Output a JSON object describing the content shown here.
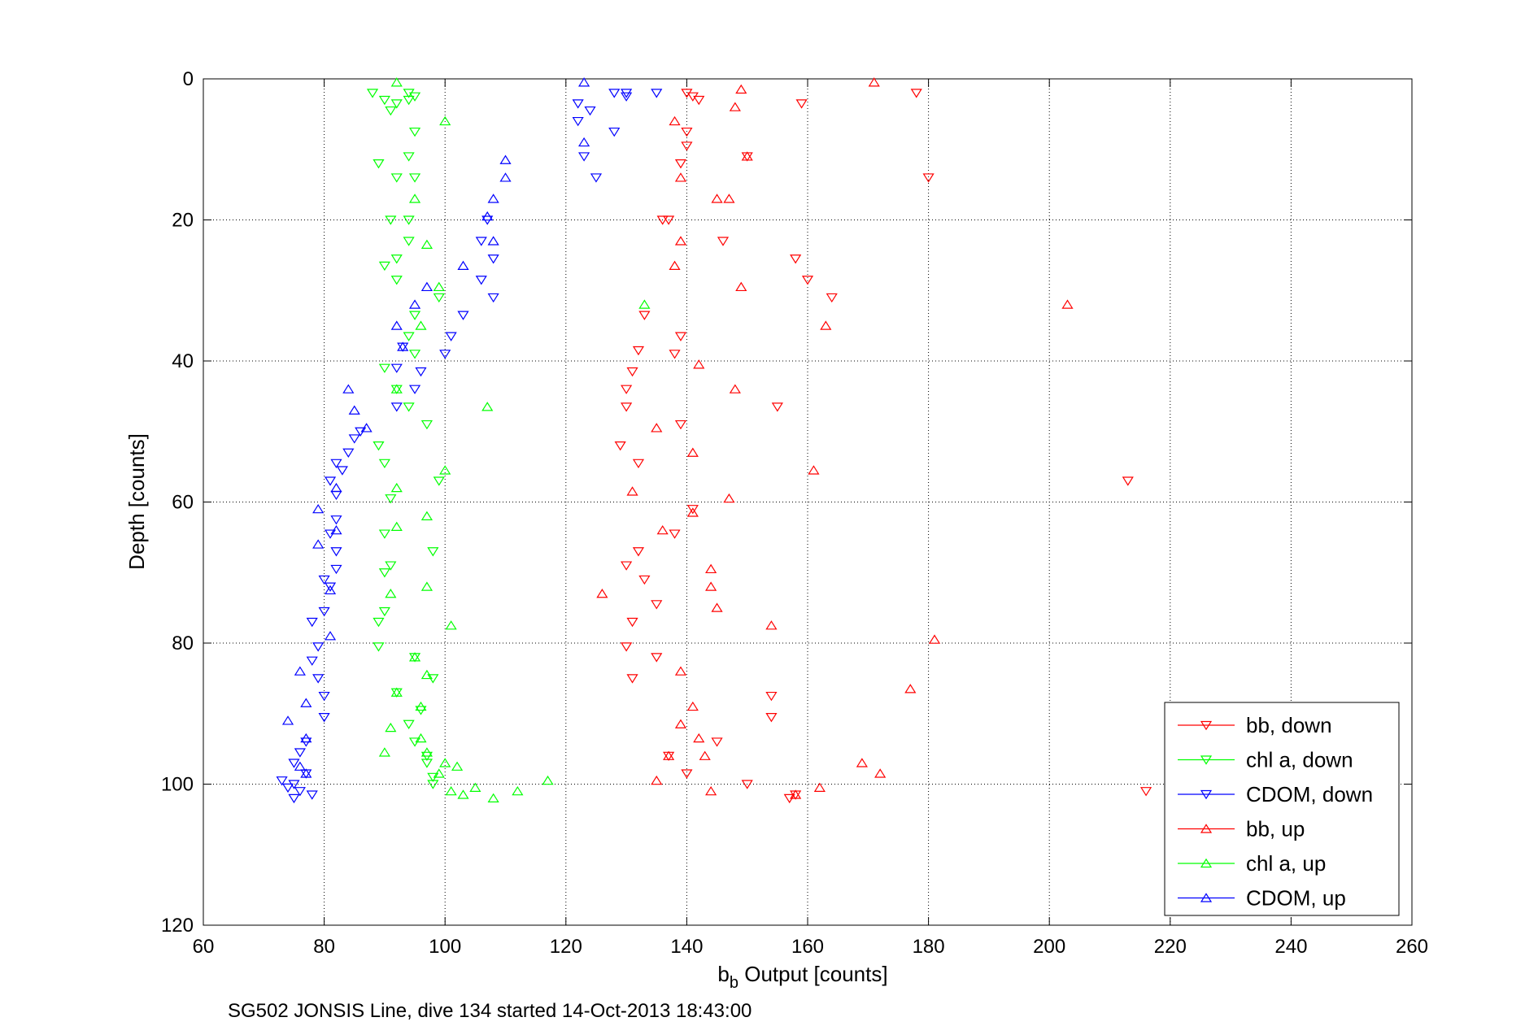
{
  "chart_data": {
    "type": "scatter",
    "title": "",
    "xlabel_main": "b",
    "xlabel_sub": "b",
    "xlabel_rest": " Output [counts]",
    "ylabel": "Depth [counts]",
    "caption": "SG502 JONSIS Line, dive 134 started 14-Oct-2013 18:43:00",
    "xlim": [
      60,
      260
    ],
    "ylim": [
      0,
      120
    ],
    "y_reversed": true,
    "xticks": [
      60,
      80,
      100,
      120,
      140,
      160,
      180,
      200,
      220,
      240,
      260
    ],
    "yticks": [
      0,
      20,
      40,
      60,
      80,
      100,
      120
    ],
    "grid": true,
    "legend_position": "bottom-right",
    "series": [
      {
        "name": "bb, down",
        "color": "#ff0000",
        "marker": "down",
        "points": [
          [
            140,
            2
          ],
          [
            178,
            2
          ],
          [
            141,
            2.5
          ],
          [
            142,
            3
          ],
          [
            159,
            3.5
          ],
          [
            140,
            7.5
          ],
          [
            140,
            9.5
          ],
          [
            150,
            11
          ],
          [
            139,
            12
          ],
          [
            180,
            14
          ],
          [
            137,
            20
          ],
          [
            136,
            20
          ],
          [
            146,
            23
          ],
          [
            158,
            25.5
          ],
          [
            160,
            28.5
          ],
          [
            164,
            31
          ],
          [
            133,
            33.5
          ],
          [
            139,
            36.5
          ],
          [
            132,
            38.5
          ],
          [
            138,
            39
          ],
          [
            131,
            41.5
          ],
          [
            130,
            44
          ],
          [
            155,
            46.5
          ],
          [
            130,
            46.5
          ],
          [
            139,
            49
          ],
          [
            129,
            52
          ],
          [
            132,
            54.5
          ],
          [
            213,
            57
          ],
          [
            141,
            61
          ],
          [
            138,
            64.5
          ],
          [
            132,
            67
          ],
          [
            130,
            69
          ],
          [
            133,
            71
          ],
          [
            135,
            74.5
          ],
          [
            131,
            77
          ],
          [
            130,
            80.5
          ],
          [
            135,
            82
          ],
          [
            131,
            85
          ],
          [
            154,
            87.5
          ],
          [
            154,
            90.5
          ],
          [
            145,
            94
          ],
          [
            137,
            96
          ],
          [
            140,
            98.5
          ],
          [
            150,
            100
          ],
          [
            158,
            101.5
          ],
          [
            157,
            102
          ],
          [
            216,
            101
          ]
        ]
      },
      {
        "name": "chl a, down",
        "color": "#00ff00",
        "marker": "down",
        "points": [
          [
            88,
            2
          ],
          [
            94,
            2
          ],
          [
            95,
            2.5
          ],
          [
            94,
            3
          ],
          [
            90,
            3
          ],
          [
            92,
            3.5
          ],
          [
            91,
            4.5
          ],
          [
            95,
            7.5
          ],
          [
            94,
            11
          ],
          [
            89,
            12
          ],
          [
            92,
            14
          ],
          [
            95,
            14
          ],
          [
            91,
            20
          ],
          [
            94,
            20
          ],
          [
            94,
            23
          ],
          [
            92,
            25.5
          ],
          [
            90,
            26.5
          ],
          [
            92,
            28.5
          ],
          [
            99,
            31
          ],
          [
            95,
            33.5
          ],
          [
            94,
            36.5
          ],
          [
            95,
            39
          ],
          [
            90,
            41
          ],
          [
            92,
            44
          ],
          [
            94,
            46.5
          ],
          [
            97,
            49
          ],
          [
            89,
            52
          ],
          [
            90,
            54.5
          ],
          [
            99,
            57
          ],
          [
            91,
            59.5
          ],
          [
            90,
            64.5
          ],
          [
            98,
            67
          ],
          [
            91,
            69
          ],
          [
            90,
            70
          ],
          [
            90,
            75.5
          ],
          [
            89,
            77
          ],
          [
            89,
            80.5
          ],
          [
            95,
            82
          ],
          [
            98,
            85
          ],
          [
            92,
            87
          ],
          [
            94,
            91.5
          ],
          [
            96,
            89.5
          ],
          [
            95,
            94
          ],
          [
            97,
            96
          ],
          [
            98,
            99
          ],
          [
            98,
            100
          ],
          [
            97,
            97
          ]
        ]
      },
      {
        "name": "CDOM, down",
        "color": "#0000ff",
        "marker": "down",
        "points": [
          [
            128,
            2
          ],
          [
            130,
            2
          ],
          [
            130,
            2.5
          ],
          [
            135,
            2
          ],
          [
            122,
            3.5
          ],
          [
            124,
            4.5
          ],
          [
            122,
            6
          ],
          [
            128,
            7.5
          ],
          [
            123,
            11
          ],
          [
            125,
            14
          ],
          [
            107,
            20
          ],
          [
            106,
            23
          ],
          [
            108,
            25.5
          ],
          [
            106,
            28.5
          ],
          [
            108,
            31
          ],
          [
            103,
            33.5
          ],
          [
            101,
            36.5
          ],
          [
            100,
            39
          ],
          [
            93,
            38
          ],
          [
            96,
            41.5
          ],
          [
            92,
            41
          ],
          [
            95,
            44
          ],
          [
            92,
            46.5
          ],
          [
            86,
            50
          ],
          [
            85,
            51
          ],
          [
            84,
            53
          ],
          [
            82,
            54.5
          ],
          [
            83,
            55.5
          ],
          [
            81,
            57
          ],
          [
            82,
            59
          ],
          [
            82,
            62.5
          ],
          [
            81,
            64.5
          ],
          [
            82,
            67
          ],
          [
            82,
            69.5
          ],
          [
            80,
            71
          ],
          [
            81,
            72
          ],
          [
            80,
            75.5
          ],
          [
            78,
            77
          ],
          [
            79,
            80.5
          ],
          [
            78,
            82.5
          ],
          [
            79,
            85
          ],
          [
            80,
            87.5
          ],
          [
            80,
            90.5
          ],
          [
            77,
            94
          ],
          [
            76,
            95.5
          ],
          [
            75,
            97
          ],
          [
            77,
            98.5
          ],
          [
            73,
            99.5
          ],
          [
            75,
            100
          ],
          [
            74,
            100.5
          ],
          [
            76,
            101
          ],
          [
            78,
            101.5
          ],
          [
            75,
            102
          ]
        ]
      },
      {
        "name": "bb, up",
        "color": "#ff0000",
        "marker": "up",
        "points": [
          [
            171,
            0.5
          ],
          [
            149,
            1.5
          ],
          [
            148,
            4
          ],
          [
            138,
            6
          ],
          [
            150,
            11
          ],
          [
            139,
            14
          ],
          [
            145,
            17
          ],
          [
            147,
            17
          ],
          [
            139,
            23
          ],
          [
            138,
            26.5
          ],
          [
            149,
            29.5
          ],
          [
            203,
            32
          ],
          [
            163,
            35
          ],
          [
            142,
            40.5
          ],
          [
            148,
            44
          ],
          [
            135,
            49.5
          ],
          [
            141,
            53
          ],
          [
            161,
            55.5
          ],
          [
            131,
            58.5
          ],
          [
            147,
            59.5
          ],
          [
            141,
            61.5
          ],
          [
            136,
            64
          ],
          [
            144,
            69.5
          ],
          [
            144,
            72
          ],
          [
            126,
            73
          ],
          [
            145,
            75
          ],
          [
            154,
            77.5
          ],
          [
            181,
            79.5
          ],
          [
            139,
            84
          ],
          [
            177,
            86.5
          ],
          [
            141,
            89
          ],
          [
            139,
            91.5
          ],
          [
            142,
            93.5
          ],
          [
            143,
            96
          ],
          [
            137,
            96
          ],
          [
            169,
            97
          ],
          [
            172,
            98.5
          ],
          [
            135,
            99.5
          ],
          [
            162,
            100.5
          ],
          [
            144,
            101
          ],
          [
            158,
            101.5
          ]
        ]
      },
      {
        "name": "chl a, up",
        "color": "#00ff00",
        "marker": "up",
        "points": [
          [
            92,
            0.5
          ],
          [
            100,
            6
          ],
          [
            95,
            17
          ],
          [
            97,
            23.5
          ],
          [
            99,
            29.5
          ],
          [
            133,
            32
          ],
          [
            96,
            35
          ],
          [
            92,
            44
          ],
          [
            107,
            46.5
          ],
          [
            100,
            55.5
          ],
          [
            92,
            58
          ],
          [
            97,
            62
          ],
          [
            92,
            63.5
          ],
          [
            97,
            72
          ],
          [
            91,
            73
          ],
          [
            101,
            77.5
          ],
          [
            95,
            82
          ],
          [
            97,
            84.5
          ],
          [
            92,
            87
          ],
          [
            96,
            89
          ],
          [
            91,
            92
          ],
          [
            96,
            93.5
          ],
          [
            90,
            95.5
          ],
          [
            97,
            95.5
          ],
          [
            100,
            97
          ],
          [
            102,
            97.5
          ],
          [
            99,
            98.5
          ],
          [
            117,
            99.5
          ],
          [
            105,
            100.5
          ],
          [
            112,
            101
          ],
          [
            101,
            101
          ],
          [
            103,
            101.5
          ],
          [
            108,
            102
          ]
        ]
      },
      {
        "name": "CDOM, up",
        "color": "#0000ff",
        "marker": "up",
        "points": [
          [
            123,
            0.5
          ],
          [
            123,
            9
          ],
          [
            110,
            11.5
          ],
          [
            110,
            14
          ],
          [
            108,
            17
          ],
          [
            107,
            19.5
          ],
          [
            108,
            23
          ],
          [
            103,
            26.5
          ],
          [
            97,
            29.5
          ],
          [
            95,
            32
          ],
          [
            92,
            35
          ],
          [
            93,
            38
          ],
          [
            84,
            44
          ],
          [
            85,
            47
          ],
          [
            87,
            49.5
          ],
          [
            82,
            58
          ],
          [
            79,
            61
          ],
          [
            82,
            64
          ],
          [
            79,
            66
          ],
          [
            81,
            72.5
          ],
          [
            81,
            79
          ],
          [
            76,
            84
          ],
          [
            77,
            88.5
          ],
          [
            74,
            91
          ],
          [
            77,
            93.5
          ],
          [
            76,
            97.5
          ],
          [
            77,
            98.5
          ]
        ]
      }
    ]
  }
}
